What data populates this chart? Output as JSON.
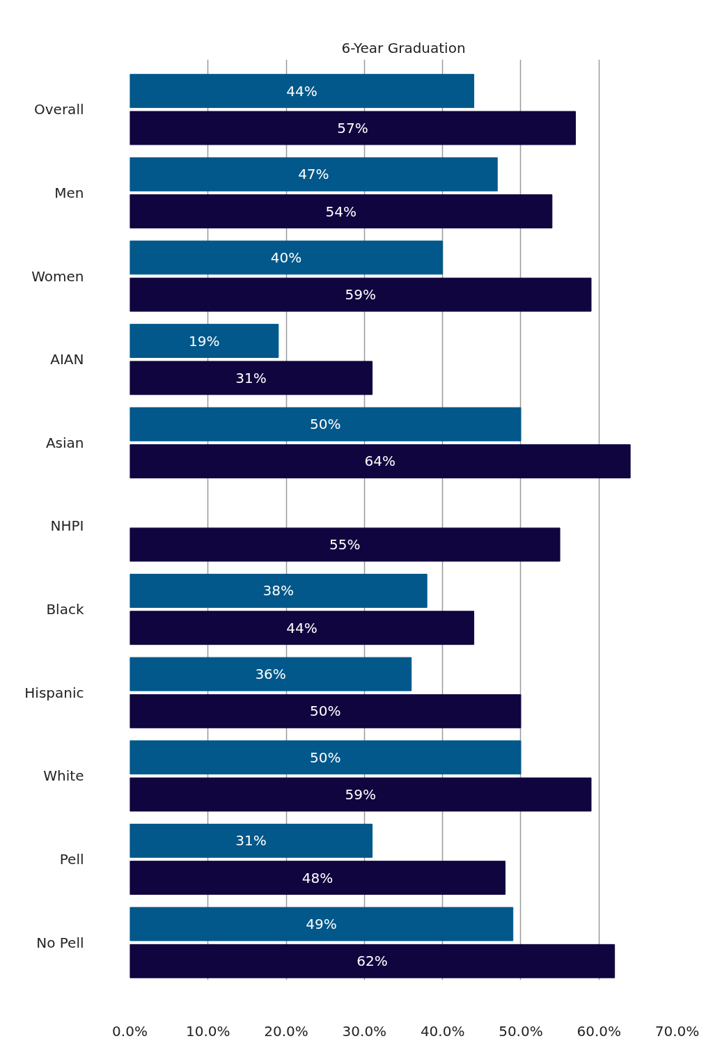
{
  "chart_data": {
    "type": "bar",
    "orientation": "horizontal",
    "title": "6-Year Graduation",
    "categories": [
      "Overall",
      "Men",
      "Women",
      "AIAN",
      "Asian",
      "NHPI",
      "Black",
      "Hispanic",
      "White",
      "Pell",
      "No Pell"
    ],
    "series": [
      {
        "color": "#02588a",
        "values": [
          44,
          47,
          40,
          19,
          50,
          null,
          38,
          36,
          50,
          31,
          49
        ],
        "value_labels": [
          "44%",
          "47%",
          "40%",
          "19%",
          "50%",
          null,
          "38%",
          "36%",
          "50%",
          "31%",
          "49%"
        ]
      },
      {
        "color": "#10053f",
        "values": [
          57,
          54,
          59,
          31,
          64,
          55,
          44,
          50,
          59,
          48,
          62
        ],
        "value_labels": [
          "57%",
          "54%",
          "59%",
          "31%",
          "64%",
          "55%",
          "44%",
          "50%",
          "59%",
          "48%",
          "62%"
        ]
      }
    ],
    "xlim": [
      0,
      70
    ],
    "xticks": [
      {
        "value": 0,
        "label": "0.0%"
      },
      {
        "value": 10,
        "label": "10.0%"
      },
      {
        "value": 20,
        "label": "20.0%"
      },
      {
        "value": 30,
        "label": "30.0%"
      },
      {
        "value": 40,
        "label": "40.0%"
      },
      {
        "value": 50,
        "label": "50.0%"
      },
      {
        "value": 60,
        "label": "60.0%"
      },
      {
        "value": 70,
        "label": "70.0%"
      }
    ],
    "grid": "x"
  }
}
